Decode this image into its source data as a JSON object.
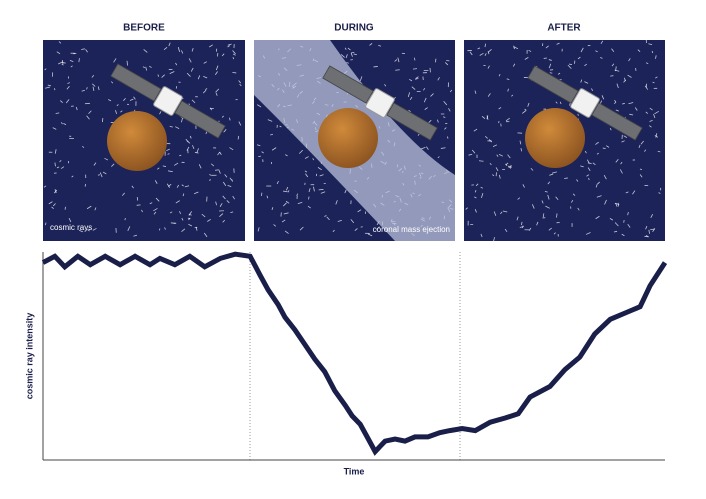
{
  "panels": [
    {
      "label": "BEFORE",
      "annotation": "cosmic rays"
    },
    {
      "label": "DURING",
      "annotation": "coronal mass ejection"
    },
    {
      "label": "AFTER"
    }
  ],
  "chart_data": {
    "type": "line",
    "x_label": "Time",
    "y_label": "cosmic ray intensity",
    "xlim": [
      0,
      100
    ],
    "ylim": [
      0,
      100
    ],
    "color": "#1a1f4a",
    "x": [
      0,
      1.9,
      3.5,
      5.6,
      7.6,
      10,
      12.4,
      14.8,
      17.2,
      18.8,
      21.2,
      23.6,
      26,
      28.5,
      30.9,
      33.3,
      34.9,
      36.2,
      37.8,
      38.9,
      40.5,
      42.1,
      43.7,
      45.3,
      46.9,
      48.6,
      49.7,
      51,
      52.3,
      53.4,
      55,
      56.6,
      58.2,
      59.8,
      61.9,
      63.8,
      65.4,
      67.4,
      69.5,
      71.9,
      74.3,
      76.4,
      78.3,
      81.5,
      83.9,
      86.3,
      88.7,
      91.2,
      93.6,
      96,
      97.6,
      100
    ],
    "values": [
      94,
      97,
      92,
      97,
      93,
      97,
      93,
      97,
      93,
      96,
      93,
      97,
      92,
      96,
      98,
      97,
      88,
      81,
      74,
      68,
      62,
      55,
      48,
      42,
      33,
      26,
      21,
      17,
      10,
      4,
      9,
      10,
      9,
      11,
      11,
      13,
      14,
      15,
      14,
      18,
      20,
      22,
      30,
      35,
      43,
      49,
      60,
      67,
      70,
      73,
      83,
      94
    ]
  }
}
